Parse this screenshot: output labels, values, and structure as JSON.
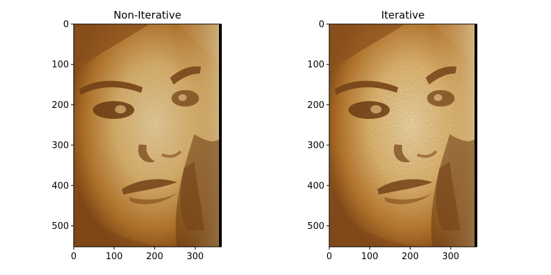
{
  "figure": {
    "panels": [
      {
        "title": "Non-Iterative",
        "x_ticks": [
          "0",
          "100",
          "200",
          "300"
        ],
        "y_ticks": [
          "0",
          "100",
          "200",
          "300",
          "400",
          "500"
        ],
        "image_description_name": "face-mosaic-image"
      },
      {
        "title": "Iterative",
        "x_ticks": [
          "0",
          "100",
          "200",
          "300"
        ],
        "y_ticks": [
          "0",
          "100",
          "200",
          "300",
          "400",
          "500"
        ],
        "image_description_name": "face-mosaic-image"
      }
    ],
    "colors": {
      "tone_dark": "#5a2a08",
      "tone_mid": "#b8742a",
      "tone_light": "#f0d49a",
      "tone_highlight": "#f8e6bc"
    }
  }
}
